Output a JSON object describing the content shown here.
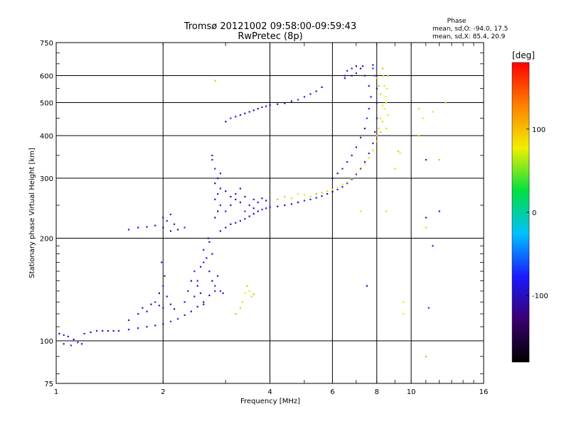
{
  "header": {
    "title_line1": "Tromsø 20121002 09:58:00-09:59:43",
    "title_line2": "RwPretec (8p)"
  },
  "phase_box": {
    "heading": "Phase",
    "line_o": "mean, sd,O: -94.0, 17.5",
    "line_x": "mean, sd,X:  85.4, 20.9"
  },
  "colorbar": {
    "title": "[deg]",
    "ticks": [
      {
        "value": 100,
        "label": "100"
      },
      {
        "value": 0,
        "label": "0"
      },
      {
        "value": -100,
        "label": "-100"
      }
    ],
    "range": [
      -180,
      180
    ],
    "colors": [
      "#000000",
      "#3a0070",
      "#1a1aff",
      "#00c0ff",
      "#00e040",
      "#f0f000",
      "#ff8000",
      "#ff0000"
    ]
  },
  "chart_data": {
    "type": "scatter",
    "title": "Tromsø 20121002 09:58:00-09:59:43",
    "subtitle": "RwPretec (8p)",
    "xlabel": "Frequency [MHz]",
    "ylabel": "Stationary phase Virtual Height [km]",
    "x_scale": "log",
    "y_scale": "log",
    "xlim": [
      1,
      16
    ],
    "ylim": [
      75,
      750
    ],
    "x_ticks": [
      {
        "value": 1,
        "label": "1"
      },
      {
        "value": 2,
        "label": "2"
      },
      {
        "value": 4,
        "label": "4"
      },
      {
        "value": 6,
        "label": "6"
      },
      {
        "value": 8,
        "label": "8"
      },
      {
        "value": 10,
        "label": "10"
      },
      {
        "value": 16,
        "label": "16"
      }
    ],
    "y_ticks": [
      {
        "value": 75,
        "label": "75"
      },
      {
        "value": 100,
        "label": "100"
      },
      {
        "value": 200,
        "label": "200"
      },
      {
        "value": 300,
        "label": "300"
      },
      {
        "value": 400,
        "label": "400"
      },
      {
        "value": 500,
        "label": "500"
      },
      {
        "value": 600,
        "label": "600"
      },
      {
        "value": 750,
        "label": "750"
      }
    ],
    "grid": true,
    "color_encoding": "phase [deg]",
    "series": [
      {
        "mode": "O",
        "points": [
          [
            1.02,
            105
          ],
          [
            1.05,
            104
          ],
          [
            1.08,
            103
          ],
          [
            1.12,
            101
          ],
          [
            1.15,
            99
          ],
          [
            1.18,
            98
          ],
          [
            1.05,
            98
          ],
          [
            1.1,
            97
          ],
          [
            1.2,
            105
          ],
          [
            1.25,
            106
          ],
          [
            1.3,
            107
          ],
          [
            1.35,
            107
          ],
          [
            1.4,
            107
          ],
          [
            1.45,
            107
          ],
          [
            1.5,
            107
          ],
          [
            1.6,
            108
          ],
          [
            1.7,
            109
          ],
          [
            1.8,
            110
          ],
          [
            1.9,
            111
          ],
          [
            2.0,
            112
          ],
          [
            2.1,
            114
          ],
          [
            2.2,
            116
          ],
          [
            2.3,
            119
          ],
          [
            2.4,
            122
          ],
          [
            2.5,
            126
          ],
          [
            2.6,
            130
          ],
          [
            2.7,
            136
          ],
          [
            2.8,
            140
          ],
          [
            1.6,
            115
          ],
          [
            1.7,
            120
          ],
          [
            1.75,
            125
          ],
          [
            1.8,
            122
          ],
          [
            1.85,
            128
          ],
          [
            1.9,
            130
          ],
          [
            1.95,
            127
          ],
          [
            2.0,
            125
          ],
          [
            2.05,
            135
          ],
          [
            2.1,
            128
          ],
          [
            2.15,
            124
          ],
          [
            1.95,
            138
          ],
          [
            2.0,
            145
          ],
          [
            1.98,
            170
          ],
          [
            2.02,
            155
          ],
          [
            2.3,
            130
          ],
          [
            2.35,
            140
          ],
          [
            2.4,
            150
          ],
          [
            2.45,
            160
          ],
          [
            2.5,
            150
          ],
          [
            2.55,
            165
          ],
          [
            2.6,
            170
          ],
          [
            2.65,
            175
          ],
          [
            2.7,
            160
          ],
          [
            2.75,
            150
          ],
          [
            2.8,
            145
          ],
          [
            2.85,
            155
          ],
          [
            2.6,
            185
          ],
          [
            2.7,
            195
          ],
          [
            2.75,
            180
          ],
          [
            2.68,
            200
          ],
          [
            2.9,
            140
          ],
          [
            2.95,
            138
          ],
          [
            2.45,
            135
          ],
          [
            2.5,
            145
          ],
          [
            2.55,
            138
          ],
          [
            2.6,
            128
          ],
          [
            2.0,
            215
          ],
          [
            2.05,
            225
          ],
          [
            2.1,
            235
          ],
          [
            2.15,
            220
          ],
          [
            2.0,
            230
          ],
          [
            2.1,
            210
          ],
          [
            2.2,
            212
          ],
          [
            2.3,
            215
          ],
          [
            1.6,
            212
          ],
          [
            1.7,
            215
          ],
          [
            1.8,
            216
          ],
          [
            1.9,
            218
          ],
          [
            2.8,
            230
          ],
          [
            2.85,
            240
          ],
          [
            2.9,
            250
          ],
          [
            2.8,
            260
          ],
          [
            2.85,
            270
          ],
          [
            2.9,
            280
          ],
          [
            2.8,
            290
          ],
          [
            2.85,
            300
          ],
          [
            2.8,
            320
          ],
          [
            2.75,
            350
          ],
          [
            2.75,
            340
          ],
          [
            2.9,
            310
          ],
          [
            2.9,
            210
          ],
          [
            3.0,
            215
          ],
          [
            3.1,
            220
          ],
          [
            3.2,
            222
          ],
          [
            3.3,
            225
          ],
          [
            3.4,
            228
          ],
          [
            3.5,
            232
          ],
          [
            3.6,
            236
          ],
          [
            3.7,
            240
          ],
          [
            3.8,
            243
          ],
          [
            3.9,
            245
          ],
          [
            4.0,
            247
          ],
          [
            4.2,
            248
          ],
          [
            4.4,
            250
          ],
          [
            4.6,
            252
          ],
          [
            4.8,
            255
          ],
          [
            5.0,
            258
          ],
          [
            5.2,
            260
          ],
          [
            5.4,
            263
          ],
          [
            5.6,
            266
          ],
          [
            5.8,
            270
          ],
          [
            6.0,
            274
          ],
          [
            6.2,
            278
          ],
          [
            6.4,
            283
          ],
          [
            6.6,
            290
          ],
          [
            6.8,
            298
          ],
          [
            7.0,
            308
          ],
          [
            7.2,
            320
          ],
          [
            7.4,
            335
          ],
          [
            7.6,
            355
          ],
          [
            7.8,
            380
          ],
          [
            7.9,
            410
          ],
          [
            8.0,
            450
          ],
          [
            8.0,
            500
          ],
          [
            8.0,
            550
          ],
          [
            7.9,
            600
          ],
          [
            7.8,
            630
          ],
          [
            3.0,
            240
          ],
          [
            3.1,
            250
          ],
          [
            3.2,
            260
          ],
          [
            3.3,
            255
          ],
          [
            3.4,
            265
          ],
          [
            3.5,
            250
          ],
          [
            3.6,
            260
          ],
          [
            3.2,
            270
          ],
          [
            3.3,
            280
          ],
          [
            3.0,
            275
          ],
          [
            3.1,
            265
          ],
          [
            3.4,
            240
          ],
          [
            3.7,
            255
          ],
          [
            3.8,
            262
          ],
          [
            3.6,
            245
          ],
          [
            3.9,
            258
          ],
          [
            6.0,
            300
          ],
          [
            6.2,
            310
          ],
          [
            6.4,
            320
          ],
          [
            6.6,
            335
          ],
          [
            6.8,
            350
          ],
          [
            7.0,
            370
          ],
          [
            7.2,
            395
          ],
          [
            7.4,
            420
          ],
          [
            7.5,
            450
          ],
          [
            7.6,
            480
          ],
          [
            7.7,
            520
          ],
          [
            7.6,
            560
          ],
          [
            7.4,
            600
          ],
          [
            7.2,
            630
          ],
          [
            7.0,
            640
          ],
          [
            6.8,
            630
          ],
          [
            6.6,
            620
          ],
          [
            6.5,
            600
          ],
          [
            7.3,
            640
          ],
          [
            7.8,
            645
          ],
          [
            3.0,
            440
          ],
          [
            3.1,
            450
          ],
          [
            3.2,
            455
          ],
          [
            3.3,
            460
          ],
          [
            3.4,
            465
          ],
          [
            3.5,
            470
          ],
          [
            3.6,
            475
          ],
          [
            3.7,
            480
          ],
          [
            3.8,
            485
          ],
          [
            3.9,
            488
          ],
          [
            4.0,
            492
          ],
          [
            4.2,
            495
          ],
          [
            4.4,
            498
          ],
          [
            4.6,
            505
          ],
          [
            4.8,
            510
          ],
          [
            5.0,
            520
          ],
          [
            5.2,
            530
          ],
          [
            5.4,
            540
          ],
          [
            5.6,
            555
          ],
          [
            6.5,
            590
          ],
          [
            6.8,
            600
          ],
          [
            7.0,
            610
          ],
          [
            11.5,
            190
          ],
          [
            11.0,
            340
          ],
          [
            11.0,
            230
          ],
          [
            12.0,
            240
          ],
          [
            7.5,
            145
          ],
          [
            11.2,
            125
          ]
        ]
      },
      {
        "mode": "X",
        "points": [
          [
            4.2,
            260
          ],
          [
            4.4,
            265
          ],
          [
            4.6,
            262
          ],
          [
            4.8,
            270
          ],
          [
            5.0,
            268
          ],
          [
            5.2,
            265
          ],
          [
            5.4,
            270
          ],
          [
            5.6,
            272
          ],
          [
            5.8,
            275
          ],
          [
            6.0,
            278
          ],
          [
            6.2,
            282
          ],
          [
            6.4,
            288
          ],
          [
            6.6,
            292
          ],
          [
            6.8,
            300
          ],
          [
            7.0,
            310
          ],
          [
            7.2,
            318
          ],
          [
            7.4,
            330
          ],
          [
            7.6,
            345
          ],
          [
            7.8,
            362
          ],
          [
            8.0,
            385
          ],
          [
            8.2,
            410
          ],
          [
            8.3,
            440
          ],
          [
            8.4,
            480
          ],
          [
            8.45,
            520
          ],
          [
            8.4,
            560
          ],
          [
            8.35,
            600
          ],
          [
            8.3,
            630
          ],
          [
            8.0,
            400
          ],
          [
            8.1,
            420
          ],
          [
            8.2,
            450
          ],
          [
            8.3,
            490
          ],
          [
            8.2,
            530
          ],
          [
            8.1,
            560
          ],
          [
            8.0,
            590
          ],
          [
            8.5,
            420
          ],
          [
            8.6,
            460
          ],
          [
            8.5,
            500
          ],
          [
            8.55,
            550
          ],
          [
            8.6,
            600
          ],
          [
            3.2,
            120
          ],
          [
            3.3,
            125
          ],
          [
            3.35,
            130
          ],
          [
            3.4,
            138
          ],
          [
            3.5,
            140
          ],
          [
            3.55,
            135
          ],
          [
            3.6,
            137
          ],
          [
            3.45,
            145
          ],
          [
            10.5,
            480
          ],
          [
            11.5,
            470
          ],
          [
            10.8,
            450
          ],
          [
            10.5,
            400
          ],
          [
            12.5,
            500
          ],
          [
            12.0,
            340
          ],
          [
            9.2,
            360
          ],
          [
            9.0,
            320
          ],
          [
            9.3,
            355
          ],
          [
            7.2,
            240
          ],
          [
            8.5,
            240
          ],
          [
            11.0,
            90
          ],
          [
            2.8,
            580
          ],
          [
            11.0,
            215
          ],
          [
            9.5,
            130
          ],
          [
            9.5,
            120
          ]
        ]
      }
    ]
  }
}
